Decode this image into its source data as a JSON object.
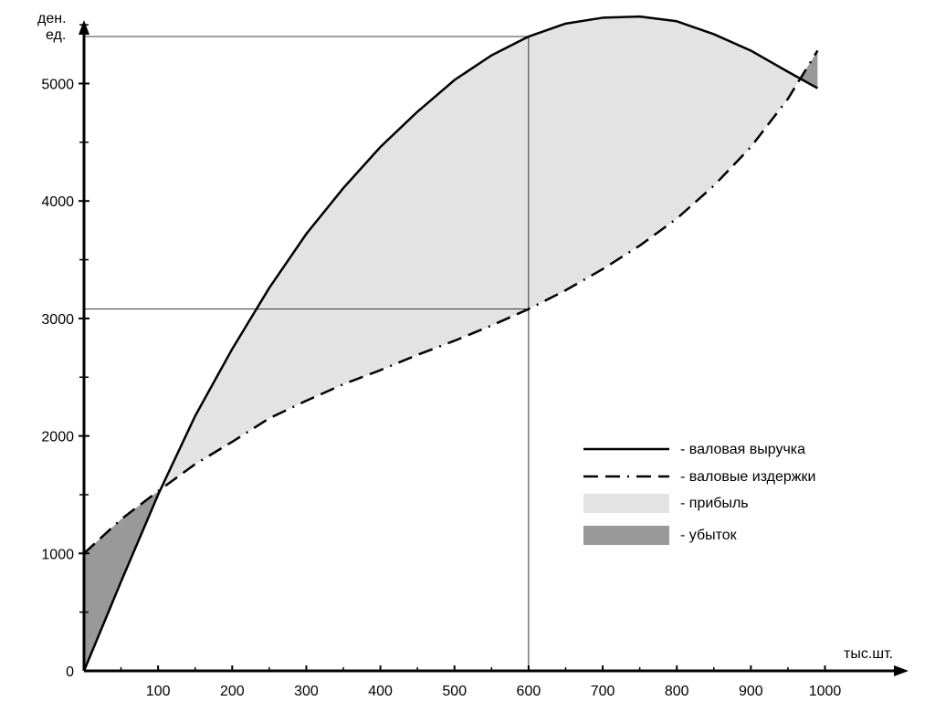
{
  "chart_data": {
    "type": "line",
    "ylabel_line1": "ден.",
    "ylabel_line2": "ед.",
    "xlabel": "тыс.шт.",
    "x_ticks": [
      "100",
      "200",
      "300",
      "400",
      "500",
      "600",
      "700",
      "800",
      "900",
      "1000"
    ],
    "y_ticks": [
      "0",
      "1000",
      "2000",
      "3000",
      "4000",
      "5000"
    ],
    "xlim": [
      0,
      1000
    ],
    "ylim": [
      0,
      5500
    ],
    "series": [
      {
        "name": "- валовая выручка",
        "style": "solid",
        "x": [
          0,
          50,
          100,
          150,
          200,
          250,
          300,
          350,
          400,
          450,
          500,
          550,
          600,
          650,
          700,
          750,
          800,
          850,
          900,
          950,
          990
        ],
        "y": [
          0,
          760,
          1500,
          2170,
          2740,
          3260,
          3720,
          4110,
          4460,
          4760,
          5030,
          5240,
          5400,
          5510,
          5560,
          5570,
          5530,
          5420,
          5280,
          5100,
          4960
        ]
      },
      {
        "name": "- валовые издержки",
        "style": "dashed",
        "x": [
          0,
          50,
          100,
          150,
          200,
          250,
          300,
          350,
          400,
          450,
          500,
          550,
          600,
          650,
          700,
          750,
          800,
          850,
          900,
          950,
          990
        ],
        "y": [
          1000,
          1290,
          1530,
          1760,
          1950,
          2150,
          2300,
          2440,
          2560,
          2690,
          2810,
          2940,
          3080,
          3240,
          3420,
          3620,
          3850,
          4130,
          4460,
          4870,
          5280
        ]
      }
    ],
    "legend": [
      {
        "key": "revenue",
        "label": "- валовая выручка"
      },
      {
        "key": "costs",
        "label": "- валовые издержки"
      },
      {
        "key": "profit",
        "label": "- прибыль"
      },
      {
        "key": "loss",
        "label": "- убыток"
      }
    ],
    "legend_position": "right-middle",
    "reference_x": 600,
    "reference_y": [
      3080,
      5400
    ],
    "colors": {
      "profit": "#e3e3e3",
      "loss": "#999999",
      "line": "#000000"
    }
  }
}
